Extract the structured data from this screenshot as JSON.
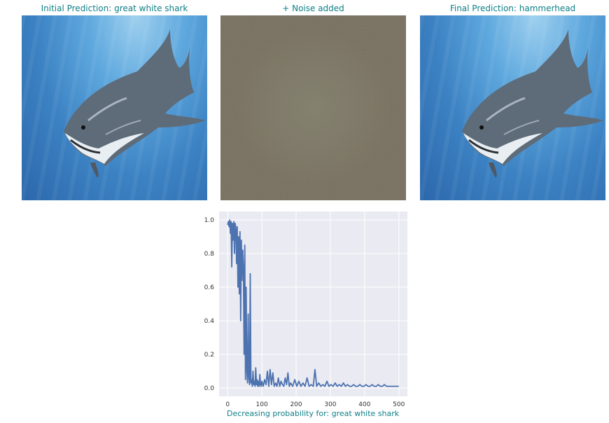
{
  "panels": [
    {
      "title": "Initial Prediction: great white shark"
    },
    {
      "title": "+ Noise added"
    },
    {
      "title": "Final Prediction: hammerhead"
    }
  ],
  "colors": {
    "title": "#0f7f86",
    "line": "#4c72b0",
    "plot_bg": "#eaeaf2",
    "grid": "#ffffff"
  },
  "chart_data": {
    "type": "line",
    "title": "",
    "xlabel": "Decreasing probability for: great white shark",
    "ylabel": "",
    "xlim": [
      -25,
      525
    ],
    "ylim": [
      -0.05,
      1.05
    ],
    "xticks": [
      0,
      100,
      200,
      300,
      400,
      500
    ],
    "yticks": [
      0.0,
      0.2,
      0.4,
      0.6,
      0.8,
      1.0
    ],
    "grid": true,
    "series": [
      {
        "points": [
          [
            0,
            0.97
          ],
          [
            2,
            0.99
          ],
          [
            4,
            0.96
          ],
          [
            6,
            1.0
          ],
          [
            8,
            0.92
          ],
          [
            10,
            0.99
          ],
          [
            12,
            0.72
          ],
          [
            14,
            0.98
          ],
          [
            16,
            0.88
          ],
          [
            18,
            0.99
          ],
          [
            20,
            0.8
          ],
          [
            22,
            0.98
          ],
          [
            24,
            0.95
          ],
          [
            26,
            0.74
          ],
          [
            28,
            0.96
          ],
          [
            30,
            0.6
          ],
          [
            32,
            0.9
          ],
          [
            34,
            0.56
          ],
          [
            36,
            0.93
          ],
          [
            38,
            0.4
          ],
          [
            40,
            0.88
          ],
          [
            42,
            0.64
          ],
          [
            44,
            0.82
          ],
          [
            46,
            0.72
          ],
          [
            48,
            0.2
          ],
          [
            50,
            0.85
          ],
          [
            52,
            0.05
          ],
          [
            54,
            0.6
          ],
          [
            56,
            0.1
          ],
          [
            58,
            0.03
          ],
          [
            60,
            0.44
          ],
          [
            62,
            0.06
          ],
          [
            64,
            0.02
          ],
          [
            66,
            0.68
          ],
          [
            68,
            0.03
          ],
          [
            70,
            0.05
          ],
          [
            72,
            0.01
          ],
          [
            74,
            0.1
          ],
          [
            76,
            0.02
          ],
          [
            78,
            0.04
          ],
          [
            80,
            0.01
          ],
          [
            82,
            0.12
          ],
          [
            84,
            0.02
          ],
          [
            86,
            0.05
          ],
          [
            88,
            0.01
          ],
          [
            90,
            0.04
          ],
          [
            92,
            0.01
          ],
          [
            94,
            0.08
          ],
          [
            96,
            0.02
          ],
          [
            98,
            0.01
          ],
          [
            100,
            0.04
          ],
          [
            104,
            0.01
          ],
          [
            108,
            0.05
          ],
          [
            112,
            0.02
          ],
          [
            116,
            0.1
          ],
          [
            120,
            0.01
          ],
          [
            124,
            0.11
          ],
          [
            128,
            0.02
          ],
          [
            132,
            0.09
          ],
          [
            136,
            0.01
          ],
          [
            140,
            0.03
          ],
          [
            144,
            0.01
          ],
          [
            148,
            0.06
          ],
          [
            152,
            0.01
          ],
          [
            156,
            0.04
          ],
          [
            160,
            0.02
          ],
          [
            164,
            0.01
          ],
          [
            168,
            0.06
          ],
          [
            172,
            0.02
          ],
          [
            176,
            0.09
          ],
          [
            180,
            0.01
          ],
          [
            184,
            0.03
          ],
          [
            190,
            0.01
          ],
          [
            196,
            0.05
          ],
          [
            202,
            0.01
          ],
          [
            208,
            0.04
          ],
          [
            214,
            0.01
          ],
          [
            220,
            0.03
          ],
          [
            226,
            0.01
          ],
          [
            232,
            0.06
          ],
          [
            238,
            0.01
          ],
          [
            244,
            0.02
          ],
          [
            250,
            0.01
          ],
          [
            255,
            0.11
          ],
          [
            260,
            0.01
          ],
          [
            266,
            0.03
          ],
          [
            272,
            0.01
          ],
          [
            278,
            0.02
          ],
          [
            284,
            0.01
          ],
          [
            290,
            0.04
          ],
          [
            296,
            0.01
          ],
          [
            302,
            0.02
          ],
          [
            308,
            0.01
          ],
          [
            314,
            0.03
          ],
          [
            320,
            0.01
          ],
          [
            326,
            0.02
          ],
          [
            332,
            0.01
          ],
          [
            338,
            0.03
          ],
          [
            344,
            0.01
          ],
          [
            350,
            0.02
          ],
          [
            356,
            0.01
          ],
          [
            362,
            0.01
          ],
          [
            368,
            0.02
          ],
          [
            374,
            0.01
          ],
          [
            380,
            0.01
          ],
          [
            386,
            0.02
          ],
          [
            392,
            0.01
          ],
          [
            398,
            0.01
          ],
          [
            404,
            0.02
          ],
          [
            410,
            0.01
          ],
          [
            416,
            0.01
          ],
          [
            422,
            0.02
          ],
          [
            428,
            0.01
          ],
          [
            434,
            0.01
          ],
          [
            440,
            0.02
          ],
          [
            446,
            0.01
          ],
          [
            452,
            0.01
          ],
          [
            458,
            0.02
          ],
          [
            464,
            0.01
          ],
          [
            470,
            0.01
          ],
          [
            476,
            0.01
          ],
          [
            482,
            0.01
          ],
          [
            488,
            0.01
          ],
          [
            494,
            0.01
          ],
          [
            500,
            0.01
          ]
        ]
      }
    ]
  }
}
